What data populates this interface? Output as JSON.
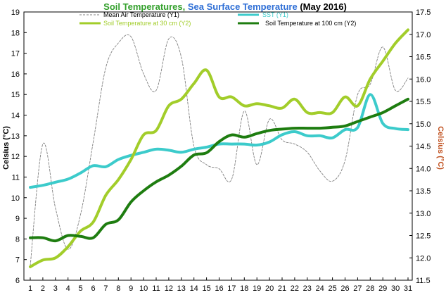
{
  "title": {
    "part1": "Soil Temperatures",
    "sep1": ", ",
    "part2": "Sea Surface Temperature",
    "part3": " (May 2016)"
  },
  "colors": {
    "title_part1": "#33a02c",
    "title_part2": "#2f6fd6",
    "title_part3": "#000000",
    "axis_right": "#c0501e",
    "mean_air": "#808080",
    "sst": "#3ccbcb",
    "soil30": "#a2cd2a",
    "soil100": "#1e7d10"
  },
  "chart_data": {
    "type": "line",
    "x": [
      1,
      2,
      3,
      4,
      5,
      6,
      7,
      8,
      9,
      10,
      11,
      12,
      13,
      14,
      15,
      16,
      17,
      18,
      19,
      20,
      21,
      22,
      23,
      24,
      25,
      26,
      27,
      28,
      29,
      30,
      31
    ],
    "xlabel": "",
    "ylabel": "Celsius (°C)",
    "y2label": "Celsius (°C)",
    "ylim": [
      6,
      19
    ],
    "y2lim": [
      11.5,
      17.5
    ],
    "yticks": [
      6,
      7,
      8,
      9,
      10,
      11,
      12,
      13,
      14,
      15,
      16,
      17,
      18,
      19
    ],
    "y2ticks": [
      "11.5",
      "12.0",
      "12.5",
      "13.0",
      "13.5",
      "14.0",
      "14.5",
      "15.0",
      "15.5",
      "16.0",
      "16.5",
      "17.0",
      "17.5"
    ],
    "grid": false,
    "legend_position": "top",
    "series": [
      {
        "name": "Mean Air Temperature (Y1)",
        "axis": "left",
        "style": "dashed",
        "values": [
          6.7,
          12.6,
          9.5,
          7.5,
          9.2,
          12.7,
          16.3,
          17.5,
          17.8,
          16.0,
          15.2,
          17.7,
          16.8,
          12.5,
          11.6,
          11.4,
          10.9,
          14.2,
          11.6,
          13.8,
          12.8,
          12.6,
          12.2,
          11.3,
          10.8,
          11.8,
          15.0,
          15.5,
          17.3,
          15.2,
          15.8
        ]
      },
      {
        "name": "SST (Y1)",
        "axis": "left",
        "style": "solid",
        "values": [
          10.5,
          10.6,
          10.75,
          10.9,
          11.2,
          11.55,
          11.5,
          11.85,
          12.05,
          12.2,
          12.35,
          12.3,
          12.2,
          12.35,
          12.45,
          12.6,
          12.6,
          12.6,
          12.55,
          12.7,
          13.05,
          13.2,
          13.0,
          13.0,
          12.9,
          13.3,
          13.4,
          15.0,
          13.6,
          13.35,
          13.3
        ]
      },
      {
        "name": "Soil Temperature at 30 cm (Y2)",
        "axis": "right",
        "style": "solid",
        "values": [
          11.8,
          11.95,
          12.0,
          12.25,
          12.6,
          12.8,
          13.4,
          13.75,
          14.2,
          14.75,
          14.85,
          15.4,
          15.55,
          15.9,
          16.2,
          15.6,
          15.6,
          15.4,
          15.45,
          15.4,
          15.35,
          15.55,
          15.25,
          15.25,
          15.25,
          15.6,
          15.4,
          16.0,
          16.4,
          16.8,
          17.1
        ]
      },
      {
        "name": "Soil Temperature at 100 cm (Y2)",
        "axis": "right",
        "style": "solid",
        "values": [
          12.45,
          12.45,
          12.38,
          12.5,
          12.48,
          12.45,
          12.75,
          12.85,
          13.25,
          13.5,
          13.7,
          13.85,
          14.05,
          14.3,
          14.35,
          14.6,
          14.75,
          14.7,
          14.78,
          14.85,
          14.88,
          14.9,
          14.9,
          14.9,
          14.92,
          14.95,
          15.05,
          15.15,
          15.25,
          15.4,
          15.55
        ]
      }
    ]
  }
}
